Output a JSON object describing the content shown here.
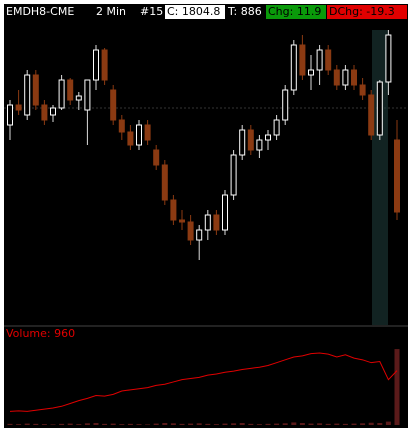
{
  "chart_data": {
    "type": "candlestick",
    "title": "EMDH8-CME",
    "interval": "2 Min",
    "chart_number": "#15",
    "close_label": "C: 1804.8",
    "ticks_label": "T: 886",
    "change_label": "Chg: 11.9",
    "day_change_label": "DChg: -19.3",
    "ylim": [
      1794,
      1825.5
    ],
    "up_color": "#ffffff",
    "down_color": "#8b3a12",
    "open": [
      1813.5,
      1815.5,
      1814.5,
      1818.5,
      1815.5,
      1814.5,
      1815.2,
      1818,
      1816,
      1815,
      1818,
      1821,
      1817,
      1814,
      1812.8,
      1811.5,
      1813.5,
      1811,
      1809.5,
      1806,
      1804,
      1803.8,
      1802,
      1803,
      1804.5,
      1803,
      1806.5,
      1810.5,
      1813,
      1811,
      1812,
      1812.5,
      1814,
      1817,
      1821.5,
      1818.5,
      1819,
      1821,
      1819,
      1817.5,
      1819,
      1817.5,
      1816.5,
      1812.5,
      1817.8,
      1812
    ],
    "high": [
      1816,
      1817,
      1819,
      1819,
      1816,
      1815.5,
      1818.5,
      1818.2,
      1816.8,
      1818,
      1821.5,
      1821.2,
      1817.5,
      1814.5,
      1813.5,
      1814,
      1814,
      1811.5,
      1810,
      1806.5,
      1805,
      1804.5,
      1803.5,
      1805,
      1805,
      1807,
      1811,
      1813.5,
      1813.5,
      1812.5,
      1813,
      1814.5,
      1817.5,
      1822,
      1822.5,
      1820.5,
      1821.5,
      1821.5,
      1819.5,
      1819.5,
      1819.5,
      1818.2,
      1817,
      1818,
      1823,
      1814
    ],
    "low": [
      1812,
      1814.5,
      1814,
      1815,
      1813.5,
      1813.8,
      1815,
      1815.5,
      1815,
      1811.5,
      1817,
      1817.5,
      1813.5,
      1812,
      1811,
      1811,
      1811.5,
      1809,
      1805.5,
      1803.5,
      1803,
      1801.5,
      1800,
      1802,
      1802.5,
      1802.5,
      1806,
      1810,
      1810.5,
      1810.2,
      1811,
      1812,
      1813.5,
      1816.5,
      1818,
      1817,
      1817.5,
      1818.5,
      1817,
      1817,
      1817,
      1816,
      1812,
      1812,
      1816.5,
      1804
    ],
    "close": [
      1815.5,
      1815,
      1818.5,
      1815.5,
      1814,
      1815.2,
      1818,
      1816,
      1816.4,
      1818,
      1821,
      1818,
      1814,
      1812.8,
      1811.5,
      1813.5,
      1812,
      1809.5,
      1806,
      1804,
      1803.8,
      1802,
      1803,
      1804.5,
      1803,
      1806.5,
      1810.5,
      1813,
      1811,
      1812,
      1812.5,
      1814,
      1817,
      1821.5,
      1818.5,
      1819,
      1821,
      1819,
      1817.5,
      1819,
      1817.5,
      1816.5,
      1812.5,
      1817.8,
      1822.5,
      1804.8
    ],
    "volume": {
      "label": "Volume: 960",
      "ylim": [
        0,
        1500
      ],
      "line_color": "#e00000",
      "bar_color": "#5a1a1a",
      "line_values": [
        240,
        250,
        240,
        260,
        280,
        300,
        330,
        380,
        430,
        470,
        520,
        510,
        540,
        600,
        620,
        640,
        660,
        700,
        720,
        760,
        800,
        820,
        840,
        880,
        900,
        930,
        950,
        980,
        1000,
        1020,
        1050,
        1100,
        1150,
        1200,
        1220,
        1260,
        1270,
        1250,
        1200,
        1240,
        1180,
        1150,
        1100,
        1120,
        800,
        960
      ],
      "bar_values": [
        20,
        15,
        25,
        20,
        15,
        10,
        20,
        25,
        15,
        30,
        35,
        20,
        25,
        15,
        20,
        15,
        10,
        25,
        35,
        30,
        20,
        25,
        30,
        20,
        15,
        25,
        30,
        35,
        20,
        15,
        20,
        25,
        30,
        45,
        35,
        25,
        30,
        20,
        25,
        20,
        25,
        30,
        40,
        35,
        60,
        1340
      ]
    }
  }
}
